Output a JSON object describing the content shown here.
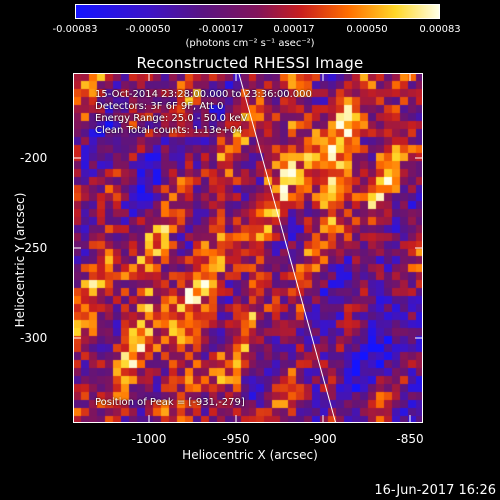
{
  "colorbar": {
    "ticks": [
      "-0.00083",
      "-0.00050",
      "-0.00017",
      "0.00017",
      "0.00050",
      "0.00083"
    ],
    "units": "(photons cm⁻² s⁻¹ asec⁻²)"
  },
  "title": "Reconstructed RHESSI Image",
  "info": {
    "time": "15-Oct-2014 23:28:00.000 to 23:36:00.000",
    "detectors": "Detectors: 3F 6F 9F, Att 0",
    "energy": "Energy Range: 25.0 - 50.0 keV",
    "clean": "Clean    Total counts: 1.13e+04",
    "peak": "Position of Peak = [-931,-279]"
  },
  "axes": {
    "xlabel": "Heliocentric X (arcsec)",
    "ylabel": "Heliocentric Y (arcsec)",
    "xticks": [
      "-1000",
      "-950",
      "-900",
      "-850"
    ],
    "yticks": [
      "-200",
      "-250",
      "-300"
    ]
  },
  "footer": "16-Jun-2017 16:26",
  "colors": {
    "limb": "#ffffff",
    "background": "#000000"
  }
}
